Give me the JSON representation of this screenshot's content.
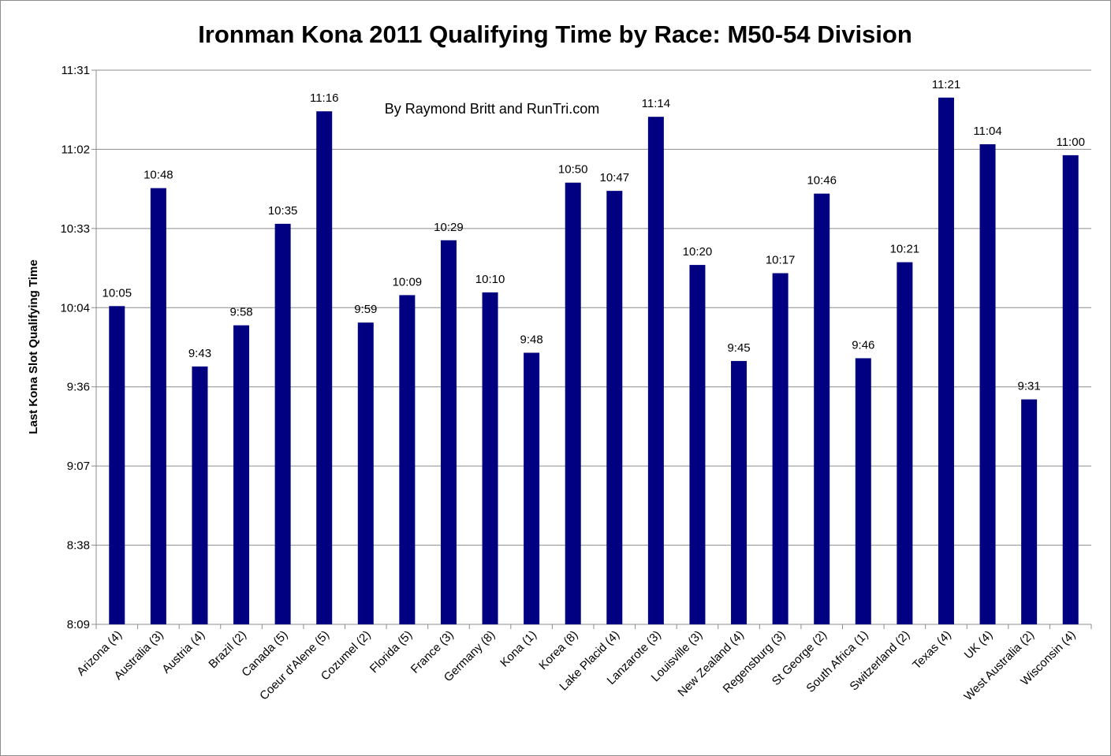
{
  "chart_data": {
    "type": "bar",
    "title": "Ironman Kona 2011 Qualifying Time by Race: M50-54 Division",
    "annotation": "By Raymond Britt and RunTri.com",
    "xlabel": "",
    "ylabel": "Last Kona Slot Qualifying Time",
    "y_ticks": [
      "8:09",
      "8:38",
      "9:07",
      "9:36",
      "10:04",
      "10:33",
      "11:02",
      "11:31"
    ],
    "ylim_minutes": [
      489,
      691
    ],
    "grid": true,
    "bar_color": "#000080",
    "categories": [
      "Arizona (4)",
      "Australia (3)",
      "Austria (4)",
      "Brazil (2)",
      "Canada (5)",
      "Coeur d'Alene (5)",
      "Cozumel (2)",
      "Florida (5)",
      "France (3)",
      "Germany (8)",
      "Kona (1)",
      "Korea (8)",
      "Lake Placid (4)",
      "Lanzarote (3)",
      "Louisville (3)",
      "New Zealand (4)",
      "Regensburg (3)",
      "St George (2)",
      "South Africa (1)",
      "Switzerland (2)",
      "Texas (4)",
      "UK (4)",
      "West Australia (2)",
      "Wisconsin (4)"
    ],
    "values": [
      "10:05",
      "10:48",
      "9:43",
      "9:58",
      "10:35",
      "11:16",
      "9:59",
      "10:09",
      "10:29",
      "10:10",
      "9:48",
      "10:50",
      "10:47",
      "11:14",
      "10:20",
      "9:45",
      "10:17",
      "10:46",
      "9:46",
      "10:21",
      "11:21",
      "11:04",
      "9:31",
      "11:00"
    ],
    "series": [
      {
        "values": [
          "10:05",
          "10:48",
          "9:43",
          "9:58",
          "10:35",
          "11:16",
          "9:59",
          "10:09",
          "10:29",
          "10:10",
          "9:48",
          "10:50",
          "10:47",
          "11:14",
          "10:20",
          "9:45",
          "10:17",
          "10:46",
          "9:46",
          "10:21",
          "11:21",
          "11:04",
          "9:31",
          "11:00"
        ]
      }
    ]
  }
}
